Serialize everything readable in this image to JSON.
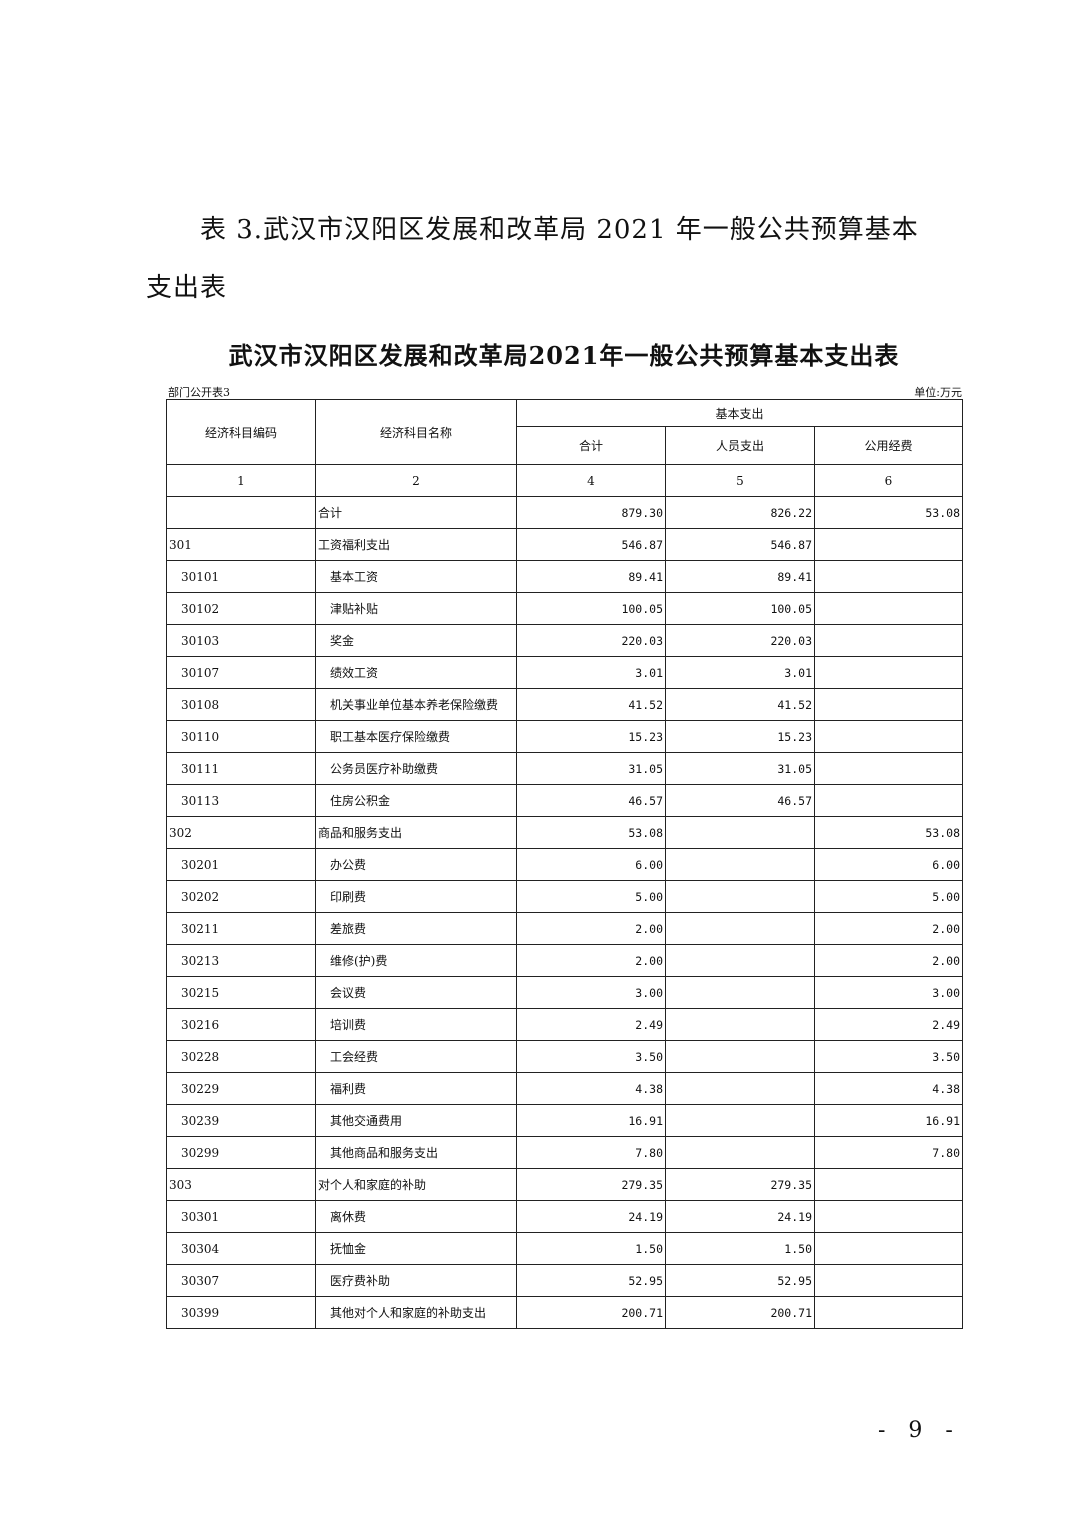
{
  "heading_line1": "表 3.武汉市汉阳区发展和改革局 2021 年一般公共预算基本",
  "heading_line2": "支出表",
  "table_title": "武汉市汉阳区发展和改革局2021年一般公共预算基本支出表",
  "table_label": "部门公开表3",
  "unit": "单位:万元",
  "headers": {
    "code": "经济科目编码",
    "name": "经济科目名称",
    "group": "基本支出",
    "total": "合计",
    "personnel": "人员支出",
    "public": "公用经费"
  },
  "col_numbers": [
    "1",
    "2",
    "4",
    "5",
    "6"
  ],
  "rows": [
    {
      "code": "",
      "name": "合计",
      "total": "879.30",
      "personnel": "826.22",
      "public": "53.08",
      "level": 0
    },
    {
      "code": "301",
      "name": "工资福利支出",
      "total": "546.87",
      "personnel": "546.87",
      "public": "",
      "level": 0
    },
    {
      "code": "30101",
      "name": "基本工资",
      "total": "89.41",
      "personnel": "89.41",
      "public": "",
      "level": 1
    },
    {
      "code": "30102",
      "name": "津贴补贴",
      "total": "100.05",
      "personnel": "100.05",
      "public": "",
      "level": 1
    },
    {
      "code": "30103",
      "name": "奖金",
      "total": "220.03",
      "personnel": "220.03",
      "public": "",
      "level": 1
    },
    {
      "code": "30107",
      "name": "绩效工资",
      "total": "3.01",
      "personnel": "3.01",
      "public": "",
      "level": 1
    },
    {
      "code": "30108",
      "name": "机关事业单位基本养老保险缴费",
      "total": "41.52",
      "personnel": "41.52",
      "public": "",
      "level": 1
    },
    {
      "code": "30110",
      "name": "职工基本医疗保险缴费",
      "total": "15.23",
      "personnel": "15.23",
      "public": "",
      "level": 1
    },
    {
      "code": "30111",
      "name": "公务员医疗补助缴费",
      "total": "31.05",
      "personnel": "31.05",
      "public": "",
      "level": 1
    },
    {
      "code": "30113",
      "name": "住房公积金",
      "total": "46.57",
      "personnel": "46.57",
      "public": "",
      "level": 1
    },
    {
      "code": "302",
      "name": "商品和服务支出",
      "total": "53.08",
      "personnel": "",
      "public": "53.08",
      "level": 0
    },
    {
      "code": "30201",
      "name": "办公费",
      "total": "6.00",
      "personnel": "",
      "public": "6.00",
      "level": 1
    },
    {
      "code": "30202",
      "name": "印刷费",
      "total": "5.00",
      "personnel": "",
      "public": "5.00",
      "level": 1
    },
    {
      "code": "30211",
      "name": "差旅费",
      "total": "2.00",
      "personnel": "",
      "public": "2.00",
      "level": 1
    },
    {
      "code": "30213",
      "name": "维修(护)费",
      "total": "2.00",
      "personnel": "",
      "public": "2.00",
      "level": 1
    },
    {
      "code": "30215",
      "name": "会议费",
      "total": "3.00",
      "personnel": "",
      "public": "3.00",
      "level": 1
    },
    {
      "code": "30216",
      "name": "培训费",
      "total": "2.49",
      "personnel": "",
      "public": "2.49",
      "level": 1
    },
    {
      "code": "30228",
      "name": "工会经费",
      "total": "3.50",
      "personnel": "",
      "public": "3.50",
      "level": 1
    },
    {
      "code": "30229",
      "name": "福利费",
      "total": "4.38",
      "personnel": "",
      "public": "4.38",
      "level": 1
    },
    {
      "code": "30239",
      "name": "其他交通费用",
      "total": "16.91",
      "personnel": "",
      "public": "16.91",
      "level": 1
    },
    {
      "code": "30299",
      "name": "其他商品和服务支出",
      "total": "7.80",
      "personnel": "",
      "public": "7.80",
      "level": 1
    },
    {
      "code": "303",
      "name": "对个人和家庭的补助",
      "total": "279.35",
      "personnel": "279.35",
      "public": "",
      "level": 0
    },
    {
      "code": "30301",
      "name": "离休费",
      "total": "24.19",
      "personnel": "24.19",
      "public": "",
      "level": 1
    },
    {
      "code": "30304",
      "name": "抚恤金",
      "total": "1.50",
      "personnel": "1.50",
      "public": "",
      "level": 1
    },
    {
      "code": "30307",
      "name": "医疗费补助",
      "total": "52.95",
      "personnel": "52.95",
      "public": "",
      "level": 1
    },
    {
      "code": "30399",
      "name": "其他对个人和家庭的补助支出",
      "total": "200.71",
      "personnel": "200.71",
      "public": "",
      "level": 1
    }
  ],
  "page_number": "- 9 -"
}
